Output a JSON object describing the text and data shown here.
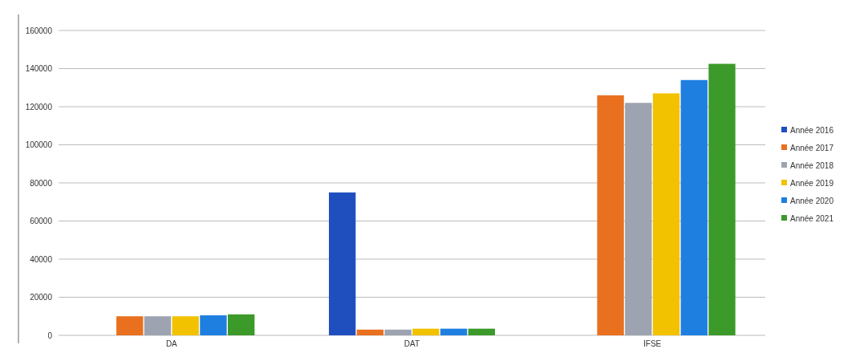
{
  "chart_data": {
    "type": "bar",
    "categories": [
      "DA",
      "DAT",
      "IFSE"
    ],
    "series": [
      {
        "name": "Année 2016",
        "color": "#1f4fbf",
        "values": [
          null,
          75000,
          null
        ]
      },
      {
        "name": "Année 2017",
        "color": "#e8701f",
        "values": [
          10000,
          3000,
          126000
        ]
      },
      {
        "name": "Année 2018",
        "color": "#9da3b0",
        "values": [
          10000,
          3000,
          122000
        ]
      },
      {
        "name": "Année 2019",
        "color": "#f2c200",
        "values": [
          10000,
          3500,
          127000
        ]
      },
      {
        "name": "Année 2020",
        "color": "#1e7fe0",
        "values": [
          10500,
          3500,
          134000
        ]
      },
      {
        "name": "Année 2021",
        "color": "#3c9a2a",
        "values": [
          11000,
          3500,
          142500
        ]
      }
    ],
    "ylim": [
      0,
      160000
    ],
    "yticks": [
      0,
      20000,
      40000,
      60000,
      80000,
      100000,
      120000,
      140000,
      160000
    ],
    "grid": "y",
    "legend": "right"
  }
}
